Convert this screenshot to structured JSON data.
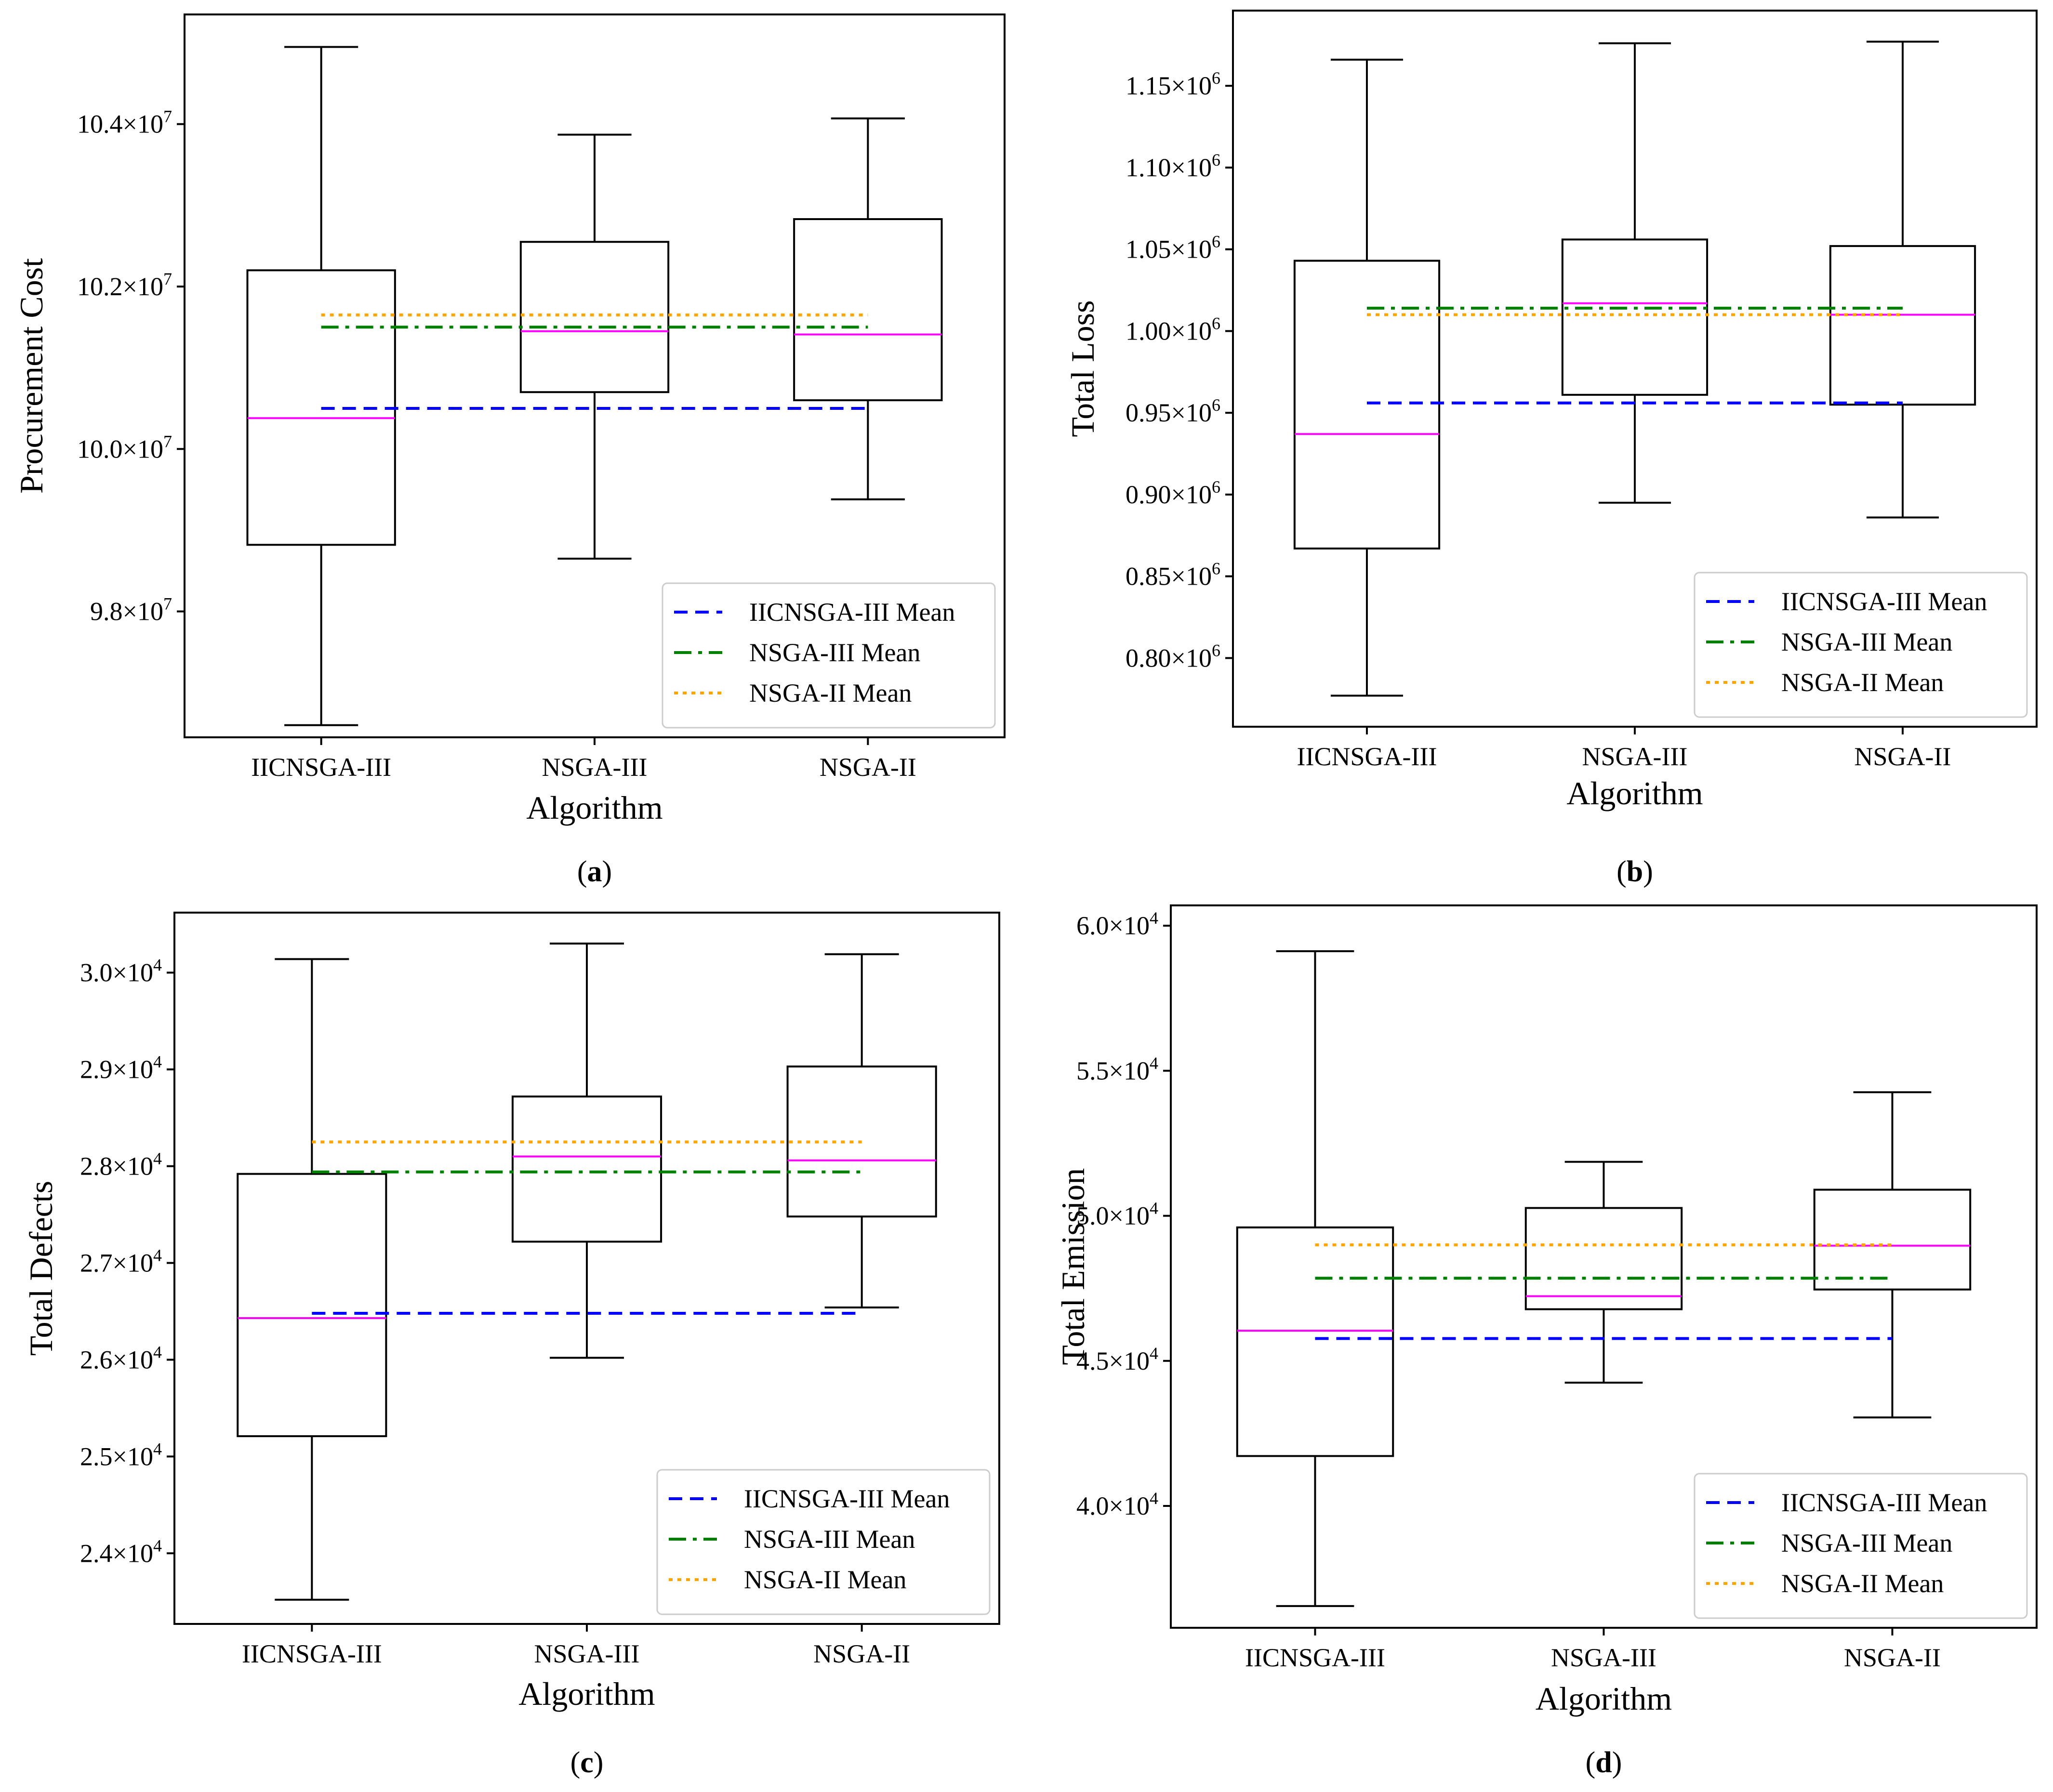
{
  "chart_data": [
    {
      "type": "box",
      "panel_label": "a",
      "title": "",
      "xlabel": "Algorithm",
      "ylabel": "Procurement Cost",
      "categories": [
        "IICNSGA-III",
        "NSGA-III",
        "NSGA-II"
      ],
      "ylim": [
        96450000.0,
        105350000.0
      ],
      "yticks": [
        {
          "value": 98000000.0,
          "mantissa": "9.8",
          "exponent": "7"
        },
        {
          "value": 100000000.0,
          "mantissa": "10.0",
          "exponent": "7"
        },
        {
          "value": 102000000.0,
          "mantissa": "10.2",
          "exponent": "7"
        },
        {
          "value": 104000000.0,
          "mantissa": "10.4",
          "exponent": "7"
        }
      ],
      "boxes": [
        {
          "name": "IICNSGA-III",
          "min": 96600000.0,
          "q1": 98820000.0,
          "median": 100380000.0,
          "q3": 102200000.0,
          "max": 104950000.0
        },
        {
          "name": "NSGA-III",
          "min": 98650000.0,
          "q1": 100700000.0,
          "median": 101450000.0,
          "q3": 102550000.0,
          "max": 103870000.0
        },
        {
          "name": "NSGA-II",
          "min": 99380000.0,
          "q1": 100600000.0,
          "median": 101410000.0,
          "q3": 102830000.0,
          "max": 104070000.0
        }
      ],
      "means": [
        {
          "name": "IICNSGA-III Mean",
          "value": 100500000.0,
          "color": "#0000ff",
          "style": "dashed"
        },
        {
          "name": "NSGA-III Mean",
          "value": 101500000.0,
          "color": "#008000",
          "style": "dashdot"
        },
        {
          "name": "NSGA-II Mean",
          "value": 101650000.0,
          "color": "#ffa500",
          "style": "dotted"
        }
      ],
      "legend": [
        "IICNSGA-III Mean",
        "NSGA-III Mean",
        "NSGA-II Mean"
      ],
      "legend_position": "lower-right",
      "grid": false
    },
    {
      "type": "box",
      "panel_label": "b",
      "title": "",
      "xlabel": "Algorithm",
      "ylabel": "Total Loss",
      "categories": [
        "IICNSGA-III",
        "NSGA-III",
        "NSGA-II"
      ],
      "ylim": [
        758000.0,
        1196000.0
      ],
      "yticks": [
        {
          "value": 800000.0,
          "mantissa": "0.80",
          "exponent": "6"
        },
        {
          "value": 850000.0,
          "mantissa": "0.85",
          "exponent": "6"
        },
        {
          "value": 900000.0,
          "mantissa": "0.90",
          "exponent": "6"
        },
        {
          "value": 950000.0,
          "mantissa": "0.95",
          "exponent": "6"
        },
        {
          "value": 1000000.0,
          "mantissa": "1.00",
          "exponent": "6"
        },
        {
          "value": 1050000.0,
          "mantissa": "1.05",
          "exponent": "6"
        },
        {
          "value": 1100000.0,
          "mantissa": "1.10",
          "exponent": "6"
        },
        {
          "value": 1150000.0,
          "mantissa": "1.15",
          "exponent": "6"
        }
      ],
      "boxes": [
        {
          "name": "IICNSGA-III",
          "min": 777000.0,
          "q1": 867000.0,
          "median": 937000.0,
          "q3": 1043000.0,
          "max": 1166000.0
        },
        {
          "name": "NSGA-III",
          "min": 895000.0,
          "q1": 961000.0,
          "median": 1017000.0,
          "q3": 1056000.0,
          "max": 1176000.0
        },
        {
          "name": "NSGA-II",
          "min": 886000.0,
          "q1": 955000.0,
          "median": 1010000.0,
          "q3": 1052000.0,
          "max": 1177000.0
        }
      ],
      "means": [
        {
          "name": "IICNSGA-III Mean",
          "value": 956000.0,
          "color": "#0000ff",
          "style": "dashed"
        },
        {
          "name": "NSGA-III Mean",
          "value": 1014000.0,
          "color": "#008000",
          "style": "dashdot"
        },
        {
          "name": "NSGA-II Mean",
          "value": 1010000.0,
          "color": "#ffa500",
          "style": "dotted"
        }
      ],
      "legend": [
        "IICNSGA-III Mean",
        "NSGA-III Mean",
        "NSGA-II Mean"
      ],
      "legend_position": "lower-right",
      "grid": false
    },
    {
      "type": "box",
      "panel_label": "c",
      "title": "",
      "xlabel": "Algorithm",
      "ylabel": "Total Defects",
      "categories": [
        "IICNSGA-III",
        "NSGA-III",
        "NSGA-II"
      ],
      "ylim": [
        23270.0,
        30620.0
      ],
      "yticks": [
        {
          "value": 24000.0,
          "mantissa": "2.4",
          "exponent": "4"
        },
        {
          "value": 25000.0,
          "mantissa": "2.5",
          "exponent": "4"
        },
        {
          "value": 26000.0,
          "mantissa": "2.6",
          "exponent": "4"
        },
        {
          "value": 27000.0,
          "mantissa": "2.7",
          "exponent": "4"
        },
        {
          "value": 28000.0,
          "mantissa": "2.8",
          "exponent": "4"
        },
        {
          "value": 29000.0,
          "mantissa": "2.9",
          "exponent": "4"
        },
        {
          "value": 30000.0,
          "mantissa": "3.0",
          "exponent": "4"
        }
      ],
      "boxes": [
        {
          "name": "IICNSGA-III",
          "min": 23520.0,
          "q1": 25210.0,
          "median": 26430.0,
          "q3": 27920.0,
          "max": 30140.0
        },
        {
          "name": "NSGA-III",
          "min": 26020.0,
          "q1": 27220.0,
          "median": 28100.0,
          "q3": 28720.0,
          "max": 30300.0
        },
        {
          "name": "NSGA-II",
          "min": 26540.0,
          "q1": 27480.0,
          "median": 28060.0,
          "q3": 29030.0,
          "max": 30190.0
        }
      ],
      "means": [
        {
          "name": "IICNSGA-III Mean",
          "value": 26480.0,
          "color": "#0000ff",
          "style": "dashed"
        },
        {
          "name": "NSGA-III Mean",
          "value": 27940.0,
          "color": "#008000",
          "style": "dashdot"
        },
        {
          "name": "NSGA-II Mean",
          "value": 28250.0,
          "color": "#ffa500",
          "style": "dotted"
        }
      ],
      "legend": [
        "IICNSGA-III Mean",
        "NSGA-III Mean",
        "NSGA-II Mean"
      ],
      "legend_position": "lower-right",
      "grid": false
    },
    {
      "type": "box",
      "panel_label": "d",
      "title": "",
      "xlabel": "Algorithm",
      "ylabel": "Total Emission",
      "categories": [
        "IICNSGA-III",
        "NSGA-III",
        "NSGA-II"
      ],
      "ylim": [
        35800.0,
        60700.0
      ],
      "yticks": [
        {
          "value": 40000.0,
          "mantissa": "4.0",
          "exponent": "4"
        },
        {
          "value": 45000.0,
          "mantissa": "4.5",
          "exponent": "4"
        },
        {
          "value": 50000.0,
          "mantissa": "5.0",
          "exponent": "4"
        },
        {
          "value": 55000.0,
          "mantissa": "5.5",
          "exponent": "4"
        },
        {
          "value": 60000.0,
          "mantissa": "6.0",
          "exponent": "4"
        }
      ],
      "boxes": [
        {
          "name": "IICNSGA-III",
          "min": 36550.0,
          "q1": 41720.0,
          "median": 46040.0,
          "q3": 49600.0,
          "max": 59120.0
        },
        {
          "name": "NSGA-III",
          "min": 44250.0,
          "q1": 46780.0,
          "median": 47230.0,
          "q3": 50270.0,
          "max": 51860.0
        },
        {
          "name": "NSGA-II",
          "min": 43050.0,
          "q1": 47460.0,
          "median": 48970.0,
          "q3": 50900.0,
          "max": 54260.0
        }
      ],
      "means": [
        {
          "name": "IICNSGA-III Mean",
          "value": 45770.0,
          "color": "#0000ff",
          "style": "dashed"
        },
        {
          "name": "NSGA-III Mean",
          "value": 47850.0,
          "color": "#008000",
          "style": "dashdot"
        },
        {
          "name": "NSGA-II Mean",
          "value": 49000.0,
          "color": "#ffa500",
          "style": "dotted"
        }
      ],
      "legend": [
        "IICNSGA-III Mean",
        "NSGA-III Mean",
        "NSGA-II Mean"
      ],
      "legend_position": "lower-right",
      "grid": false
    }
  ],
  "colors": {
    "median": "#ff00ff",
    "box": "#000000",
    "background": "#ffffff"
  }
}
